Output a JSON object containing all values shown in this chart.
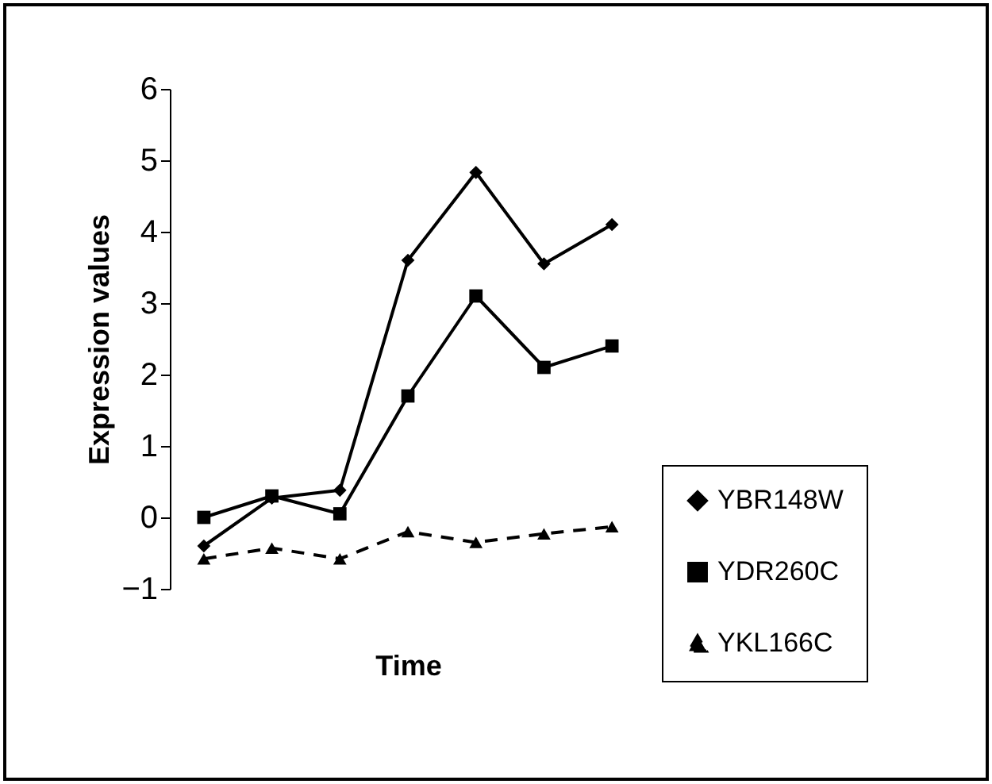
{
  "chart_data": {
    "type": "line",
    "xlabel": "Time",
    "ylabel": "Expression values",
    "categories": [
      null,
      null,
      null,
      null,
      null,
      null,
      null
    ],
    "ylim": [
      -1,
      6
    ],
    "yticks": [
      -1,
      0,
      1,
      2,
      3,
      4,
      5,
      6
    ],
    "tick_labels": "y",
    "legend": "bottom right",
    "series": [
      {
        "name": "YBR148W",
        "color": "#000000",
        "marker": "diamond",
        "line_style": "solid",
        "values": [
          -0.4,
          0.27,
          0.38,
          3.6,
          4.83,
          3.55,
          4.1
        ]
      },
      {
        "name": "YDR260C",
        "color": "#000000",
        "marker": "square",
        "line_style": "solid",
        "values": [
          0,
          0.3,
          0.05,
          1.7,
          3.1,
          2.1,
          2.4
        ]
      },
      {
        "name": "YKL166C",
        "color": "#000000",
        "marker": "triangle",
        "line_style": "dashed",
        "values": [
          -0.58,
          -0.43,
          -0.58,
          -0.2,
          -0.35,
          -0.23,
          -0.13
        ]
      }
    ]
  }
}
